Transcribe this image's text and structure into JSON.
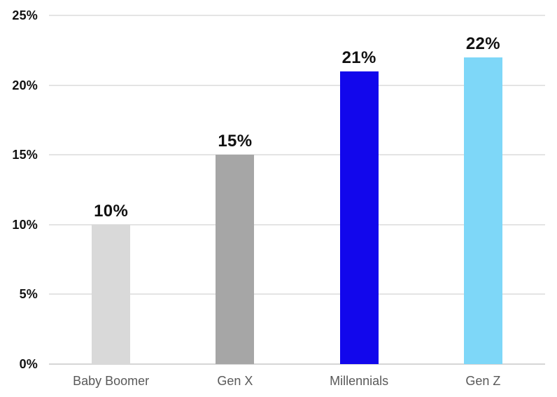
{
  "chart_data": {
    "type": "bar",
    "title": "",
    "xlabel": "",
    "ylabel": "",
    "categories": [
      "Baby Boomer",
      "Gen X",
      "Millennials",
      "Gen Z"
    ],
    "values": [
      10,
      15,
      21,
      22
    ],
    "value_labels": [
      "10%",
      "15%",
      "21%",
      "22%"
    ],
    "bar_colors": [
      "#d9d9d9",
      "#a6a6a6",
      "#1207ec",
      "#7ed7f8"
    ],
    "ylim": [
      0,
      25
    ],
    "y_tick_step": 5,
    "y_ticks": [
      "0%",
      "5%",
      "10%",
      "15%",
      "20%",
      "25%"
    ],
    "grid": "horizontal",
    "legend": "none"
  },
  "colors": {
    "background": "#ffffff",
    "gridline": "#e4e4e4",
    "axis_line": "#d6d6d6",
    "tick_label": "#111111",
    "data_label": "#111111",
    "category_label": "#595959"
  }
}
